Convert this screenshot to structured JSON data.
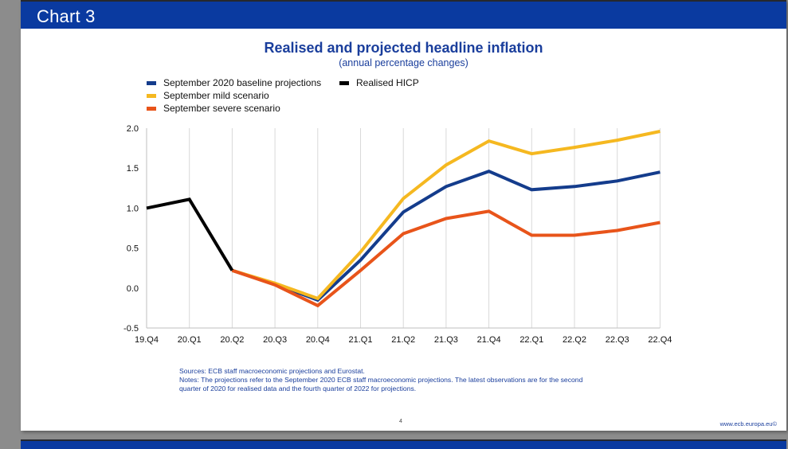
{
  "slide": {
    "header_title": "Chart 3",
    "page_number": "4",
    "site_url": "www.ecb.europa.eu©"
  },
  "chart_data": {
    "type": "line",
    "title": "Realised and projected headline inflation",
    "subtitle": "(annual percentage changes)",
    "categories": [
      "19.Q4",
      "20.Q1",
      "20.Q2",
      "20.Q3",
      "20.Q4",
      "21.Q1",
      "21.Q2",
      "21.Q3",
      "21.Q4",
      "22.Q1",
      "22.Q2",
      "22.Q3",
      "22.Q4"
    ],
    "ylim": [
      -0.5,
      2.0
    ],
    "yticks": [
      "2.0",
      "1.5",
      "1.0",
      "0.5",
      "0.0",
      "-0.5"
    ],
    "grid": "vertical",
    "legend_position": "top-left",
    "series": [
      {
        "name": "September 2020 baseline projections",
        "color": "#143c8c",
        "values": [
          null,
          null,
          0.22,
          0.05,
          -0.15,
          0.35,
          0.95,
          1.27,
          1.46,
          1.23,
          1.27,
          1.34,
          1.45
        ]
      },
      {
        "name": "September mild scenario",
        "color": "#f5b820",
        "values": [
          null,
          null,
          0.22,
          0.06,
          -0.13,
          0.45,
          1.12,
          1.54,
          1.84,
          1.68,
          1.76,
          1.85,
          1.96
        ]
      },
      {
        "name": "September severe scenario",
        "color": "#e8541a",
        "values": [
          null,
          null,
          0.22,
          0.04,
          -0.22,
          0.22,
          0.68,
          0.87,
          0.96,
          0.66,
          0.66,
          0.72,
          0.82
        ]
      },
      {
        "name": "Realised HICP",
        "color": "#000000",
        "values": [
          1.0,
          1.11,
          0.22,
          null,
          null,
          null,
          null,
          null,
          null,
          null,
          null,
          null,
          null
        ]
      }
    ],
    "sources": "Sources: ECB staff macroeconomic projections and Eurostat.",
    "notes_line1": "Notes: The projections refer to the September 2020 ECB staff macroeconomic projections. The latest observations are for the second",
    "notes_line2": "quarter of 2020 for realised data and the fourth quarter of 2022 for projections."
  }
}
